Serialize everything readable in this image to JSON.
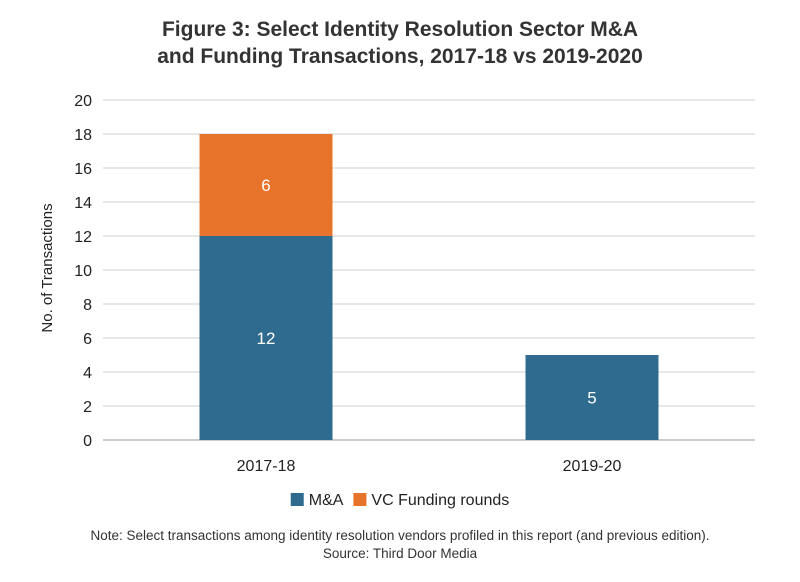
{
  "title_line1": "Figure 3: Select Identity Resolution Sector M&A",
  "title_line2": "and Funding Transactions, 2017-18 vs 2019-2020",
  "note": "Note: Select transactions among identity resolution vendors profiled in this report (and previous edition).",
  "source": "Source: Third Door Media",
  "chart_data": {
    "type": "bar",
    "stacked": true,
    "categories": [
      "2017-18",
      "2019-20"
    ],
    "series": [
      {
        "name": "M&A",
        "values": [
          12,
          5
        ],
        "color": "#2e6b8e"
      },
      {
        "name": "VC Funding rounds",
        "values": [
          6,
          0
        ],
        "color": "#e8742c"
      }
    ],
    "data_labels": true,
    "ylabel": "No. of Transactions",
    "ylim": [
      0,
      20
    ],
    "yticks": [
      0,
      2,
      4,
      6,
      8,
      10,
      12,
      14,
      16,
      18,
      20
    ],
    "grid": true,
    "legend": "bottom"
  }
}
